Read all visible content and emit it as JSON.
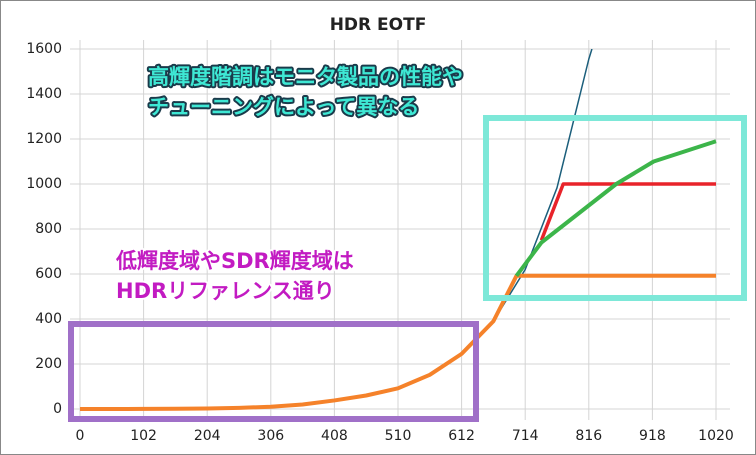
{
  "chart_data": {
    "type": "line",
    "title": "HDR EOTF",
    "xlim": [
      0,
      1020
    ],
    "xticks": [
      0,
      102,
      204,
      306,
      408,
      510,
      612,
      714,
      816,
      918,
      1020
    ],
    "ylim": [
      0,
      1600
    ],
    "yticks": [
      0,
      200,
      400,
      600,
      800,
      1000,
      1200,
      1400,
      1600
    ],
    "grid": true,
    "series": [
      {
        "color": "#1b5e7b",
        "width": 1.5,
        "x": [
          0,
          102,
          153,
          204,
          255,
          306,
          357,
          408,
          459,
          510,
          561,
          612,
          663,
          714,
          765,
          816,
          821
        ],
        "values": [
          0,
          0.3,
          1,
          2.4,
          5,
          10,
          20,
          38,
          60,
          92,
          152,
          245,
          390,
          620,
          983,
          1555,
          1600
        ]
      },
      {
        "color": "#f5822a",
        "width": 4,
        "x": [
          0,
          102,
          153,
          204,
          255,
          306,
          357,
          408,
          459,
          510,
          561,
          612,
          663,
          700,
          1020
        ],
        "values": [
          0,
          0.3,
          1,
          2.4,
          5,
          10,
          20,
          38,
          60,
          92,
          152,
          245,
          390,
          592,
          592
        ]
      },
      {
        "color": "#e8232a",
        "width": 3.5,
        "x": [
          740,
          775,
          1020
        ],
        "values": [
          750,
          1000,
          1000
        ]
      },
      {
        "color": "#3cb54a",
        "width": 4,
        "x": [
          700,
          740,
          800,
          860,
          920,
          1020
        ],
        "values": [
          592,
          740,
          870,
          1000,
          1100,
          1190
        ]
      }
    ],
    "annotations": [
      {
        "lines": [
          "高輝度階調はモニタ製品の性能や",
          "チューニングによって異なる"
        ],
        "color": "#3ee8d4",
        "outline": "#1a3a4a"
      },
      {
        "lines": [
          "低輝度域やSDR輝度域は",
          "HDRリファレンス通り"
        ],
        "color": "#c21bc2",
        "outline": "#ffffff"
      }
    ]
  }
}
